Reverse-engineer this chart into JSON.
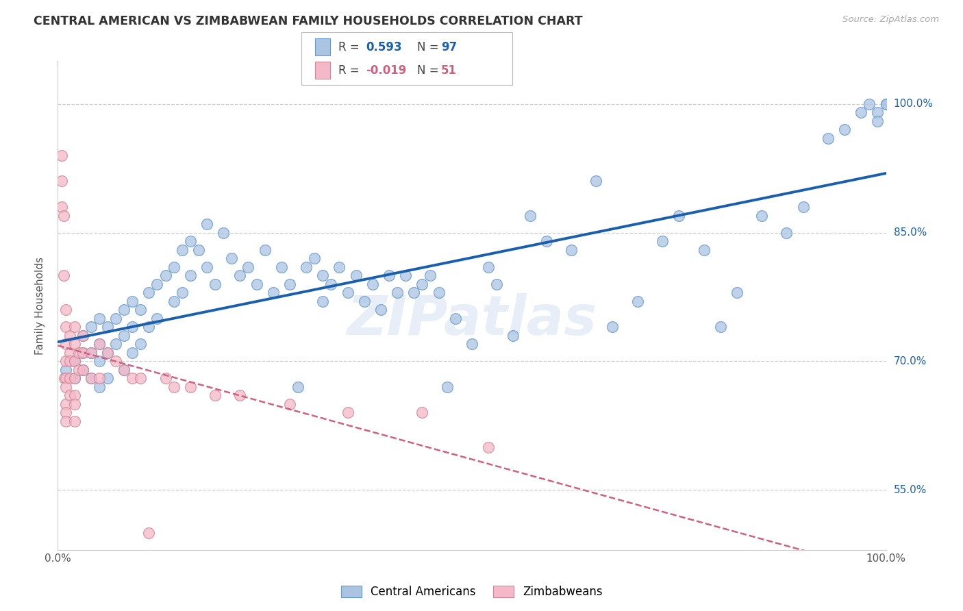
{
  "title": "CENTRAL AMERICAN VS ZIMBABWEAN FAMILY HOUSEHOLDS CORRELATION CHART",
  "source": "Source: ZipAtlas.com",
  "ylabel": "Family Households",
  "xmin": 0.0,
  "xmax": 1.0,
  "ymin": 0.48,
  "ymax": 1.05,
  "yticks": [
    0.55,
    0.7,
    0.85,
    1.0
  ],
  "ytick_labels": [
    "55.0%",
    "70.0%",
    "85.0%",
    "100.0%"
  ],
  "xticks": [
    0.0,
    0.2,
    0.4,
    0.6,
    0.8,
    1.0
  ],
  "xtick_labels": [
    "0.0%",
    "",
    "",
    "",
    "",
    "100.0%"
  ],
  "blue_R": 0.593,
  "blue_N": 97,
  "pink_R": -0.019,
  "pink_N": 51,
  "blue_color": "#aac4e2",
  "blue_line_color": "#1a5fad",
  "blue_edge_color": "#6699cc",
  "pink_color": "#f5b8c8",
  "pink_line_color": "#d06080",
  "pink_edge_color": "#cc8899",
  "watermark": "ZIPatlas",
  "legend_labels": [
    "Central Americans",
    "Zimbabweans"
  ],
  "blue_scatter_x": [
    0.01,
    0.02,
    0.02,
    0.03,
    0.03,
    0.03,
    0.04,
    0.04,
    0.04,
    0.05,
    0.05,
    0.05,
    0.05,
    0.06,
    0.06,
    0.06,
    0.07,
    0.07,
    0.08,
    0.08,
    0.08,
    0.09,
    0.09,
    0.09,
    0.1,
    0.1,
    0.11,
    0.11,
    0.12,
    0.12,
    0.13,
    0.14,
    0.14,
    0.15,
    0.15,
    0.16,
    0.16,
    0.17,
    0.18,
    0.18,
    0.19,
    0.2,
    0.21,
    0.22,
    0.23,
    0.24,
    0.25,
    0.26,
    0.27,
    0.28,
    0.29,
    0.3,
    0.31,
    0.32,
    0.32,
    0.33,
    0.34,
    0.35,
    0.36,
    0.37,
    0.38,
    0.39,
    0.4,
    0.41,
    0.42,
    0.43,
    0.44,
    0.45,
    0.46,
    0.47,
    0.48,
    0.5,
    0.52,
    0.53,
    0.55,
    0.57,
    0.59,
    0.62,
    0.65,
    0.67,
    0.7,
    0.73,
    0.75,
    0.78,
    0.8,
    0.82,
    0.85,
    0.88,
    0.9,
    0.93,
    0.95,
    0.97,
    0.98,
    0.99,
    1.0,
    0.99,
    1.0
  ],
  "blue_scatter_y": [
    0.69,
    0.7,
    0.68,
    0.73,
    0.71,
    0.69,
    0.74,
    0.71,
    0.68,
    0.75,
    0.72,
    0.7,
    0.67,
    0.74,
    0.71,
    0.68,
    0.75,
    0.72,
    0.76,
    0.73,
    0.69,
    0.77,
    0.74,
    0.71,
    0.76,
    0.72,
    0.78,
    0.74,
    0.79,
    0.75,
    0.8,
    0.81,
    0.77,
    0.83,
    0.78,
    0.84,
    0.8,
    0.83,
    0.86,
    0.81,
    0.79,
    0.85,
    0.82,
    0.8,
    0.81,
    0.79,
    0.83,
    0.78,
    0.81,
    0.79,
    0.67,
    0.81,
    0.82,
    0.8,
    0.77,
    0.79,
    0.81,
    0.78,
    0.8,
    0.77,
    0.79,
    0.76,
    0.8,
    0.78,
    0.8,
    0.78,
    0.79,
    0.8,
    0.78,
    0.67,
    0.75,
    0.72,
    0.81,
    0.79,
    0.73,
    0.87,
    0.84,
    0.83,
    0.91,
    0.74,
    0.77,
    0.84,
    0.87,
    0.83,
    0.74,
    0.78,
    0.87,
    0.85,
    0.88,
    0.96,
    0.97,
    0.99,
    1.0,
    0.99,
    1.0,
    0.98,
    1.0
  ],
  "pink_scatter_x": [
    0.005,
    0.005,
    0.005,
    0.007,
    0.007,
    0.008,
    0.01,
    0.01,
    0.01,
    0.01,
    0.01,
    0.01,
    0.01,
    0.01,
    0.01,
    0.015,
    0.015,
    0.015,
    0.015,
    0.015,
    0.02,
    0.02,
    0.02,
    0.02,
    0.02,
    0.02,
    0.02,
    0.025,
    0.025,
    0.03,
    0.03,
    0.03,
    0.04,
    0.04,
    0.05,
    0.05,
    0.06,
    0.07,
    0.08,
    0.09,
    0.1,
    0.11,
    0.13,
    0.14,
    0.16,
    0.19,
    0.22,
    0.28,
    0.35,
    0.44,
    0.52
  ],
  "pink_scatter_y": [
    0.94,
    0.91,
    0.88,
    0.87,
    0.8,
    0.68,
    0.76,
    0.74,
    0.72,
    0.7,
    0.68,
    0.67,
    0.65,
    0.64,
    0.63,
    0.73,
    0.71,
    0.7,
    0.68,
    0.66,
    0.74,
    0.72,
    0.7,
    0.68,
    0.66,
    0.65,
    0.63,
    0.71,
    0.69,
    0.73,
    0.71,
    0.69,
    0.71,
    0.68,
    0.72,
    0.68,
    0.71,
    0.7,
    0.69,
    0.68,
    0.68,
    0.5,
    0.68,
    0.67,
    0.67,
    0.66,
    0.66,
    0.65,
    0.64,
    0.64,
    0.6
  ]
}
